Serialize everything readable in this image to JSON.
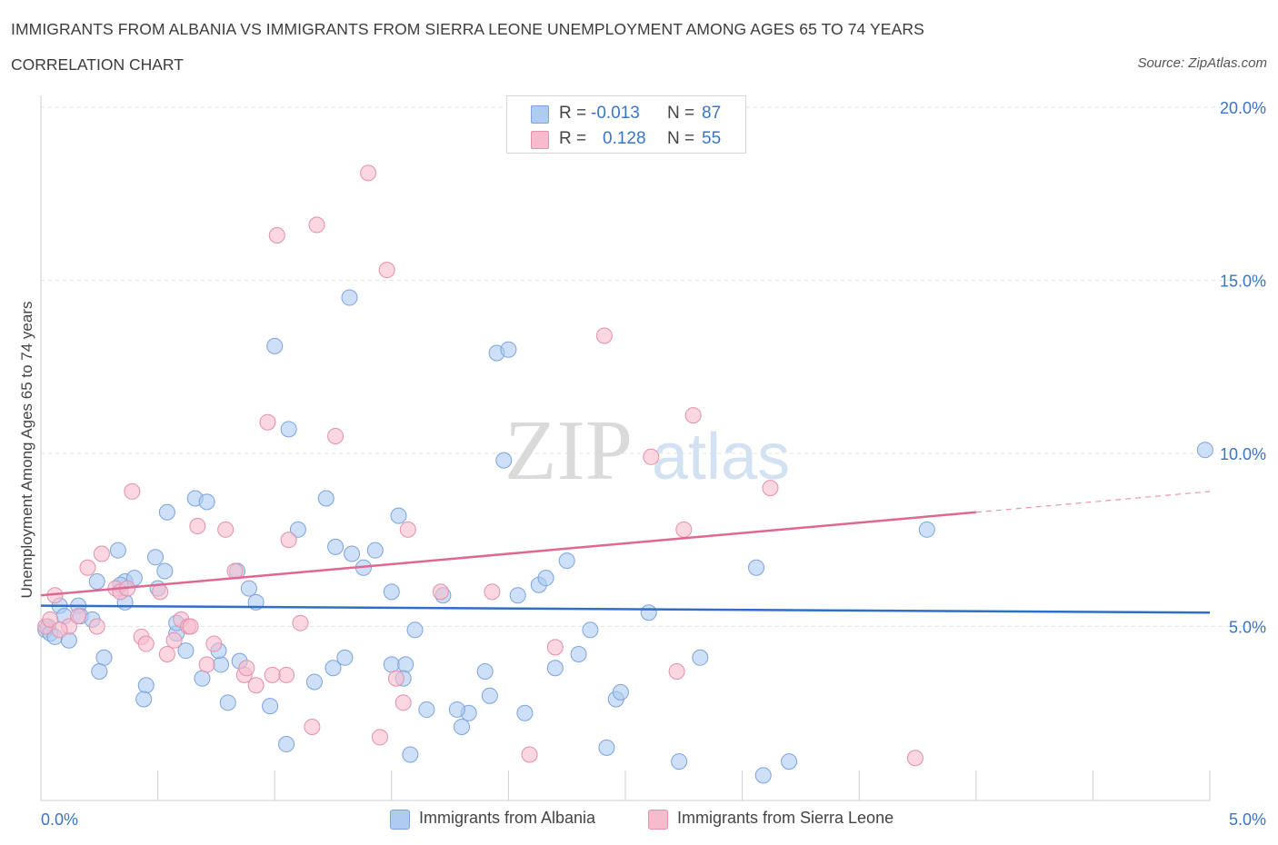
{
  "title": "IMMIGRANTS FROM ALBANIA VS IMMIGRANTS FROM SIERRA LEONE UNEMPLOYMENT AMONG AGES 65 TO 74 YEARS",
  "subtitle": "CORRELATION CHART",
  "source": "Source: ZipAtlas.com",
  "watermark": {
    "zip": "ZIP",
    "atlas": "atlas"
  },
  "stats": [
    {
      "r_label": "R =",
      "r_value": "-0.013",
      "n_label": "N =",
      "n_value": "87",
      "color": "#aecbf2"
    },
    {
      "r_label": "R =",
      "r_value": "0.128",
      "n_label": "N =",
      "n_value": "55",
      "color": "#f6bccd"
    }
  ],
  "legend": [
    {
      "label": "Immigrants from Albania",
      "color": "#aecbf2"
    },
    {
      "label": "Immigrants from Sierra Leone",
      "color": "#f6bccd"
    }
  ],
  "chart_data": {
    "type": "scatter",
    "title": "IMMIGRANTS FROM ALBANIA VS IMMIGRANTS FROM SIERRA LEONE UNEMPLOYMENT AMONG AGES 65 TO 74 YEARS",
    "subtitle": "CORRELATION CHART",
    "xlabel": "",
    "ylabel": "Unemployment Among Ages 65 to 74 years",
    "xlim": [
      0,
      5
    ],
    "ylim": [
      0,
      20
    ],
    "x_tick_labels": [
      "0.0%",
      "5.0%"
    ],
    "y_ticks": [
      5,
      10,
      15,
      20
    ],
    "y_tick_labels": [
      "5.0%",
      "10.0%",
      "15.0%",
      "20.0%"
    ],
    "grid": true,
    "legend_position": "bottom",
    "series": [
      {
        "name": "Immigrants from Albania",
        "color": "#aecbf2",
        "stroke": "#7ba3de",
        "line_color": "#2f6fc8",
        "trend": {
          "x": [
            0,
            5
          ],
          "y": [
            5.6,
            5.4
          ]
        },
        "points": [
          [
            0.02,
            4.9
          ],
          [
            0.03,
            5.0
          ],
          [
            0.04,
            4.8
          ],
          [
            0.06,
            4.7
          ],
          [
            0.08,
            5.6
          ],
          [
            0.1,
            5.3
          ],
          [
            0.12,
            4.6
          ],
          [
            0.16,
            5.6
          ],
          [
            0.17,
            5.3
          ],
          [
            0.22,
            5.2
          ],
          [
            0.24,
            6.3
          ],
          [
            0.27,
            4.1
          ],
          [
            0.25,
            3.7
          ],
          [
            0.36,
            6.3
          ],
          [
            0.4,
            6.4
          ],
          [
            0.36,
            5.7
          ],
          [
            0.45,
            3.3
          ],
          [
            0.44,
            2.9
          ],
          [
            0.49,
            7.0
          ],
          [
            0.53,
            6.6
          ],
          [
            0.54,
            8.3
          ],
          [
            0.58,
            4.8
          ],
          [
            0.62,
            4.3
          ],
          [
            0.66,
            8.7
          ],
          [
            0.71,
            8.6
          ],
          [
            0.77,
            3.9
          ],
          [
            0.85,
            4.0
          ],
          [
            0.89,
            6.1
          ],
          [
            0.84,
            6.6
          ],
          [
            0.92,
            5.7
          ],
          [
            0.98,
            2.7
          ],
          [
            1.05,
            1.6
          ],
          [
            1.1,
            7.8
          ],
          [
            1.17,
            3.4
          ],
          [
            1.22,
            8.7
          ],
          [
            1.26,
            7.3
          ],
          [
            1.3,
            4.1
          ],
          [
            1.33,
            7.1
          ],
          [
            1.38,
            6.7
          ],
          [
            1.43,
            7.2
          ],
          [
            1.5,
            6.0
          ],
          [
            1.53,
            8.2
          ],
          [
            1.58,
            1.3
          ],
          [
            1.6,
            4.9
          ],
          [
            1.65,
            2.6
          ],
          [
            1.72,
            5.9
          ],
          [
            1.8,
            2.1
          ],
          [
            1.83,
            2.5
          ],
          [
            1.92,
            3.0
          ],
          [
            1.95,
            12.9
          ],
          [
            1.98,
            9.8
          ],
          [
            2.0,
            13.0
          ],
          [
            2.04,
            5.9
          ],
          [
            2.07,
            2.5
          ],
          [
            2.13,
            6.2
          ],
          [
            2.16,
            6.4
          ],
          [
            2.2,
            3.8
          ],
          [
            2.25,
            6.9
          ],
          [
            2.3,
            4.2
          ],
          [
            2.35,
            4.9
          ],
          [
            2.46,
            2.9
          ],
          [
            2.42,
            1.5
          ],
          [
            2.6,
            5.4
          ],
          [
            2.73,
            1.1
          ],
          [
            2.82,
            4.1
          ],
          [
            3.06,
            6.7
          ],
          [
            3.09,
            0.7
          ],
          [
            3.2,
            1.1
          ],
          [
            3.79,
            7.8
          ],
          [
            4.98,
            10.1
          ],
          [
            1.0,
            13.1
          ],
          [
            1.06,
            10.7
          ],
          [
            0.8,
            2.8
          ],
          [
            0.69,
            3.5
          ],
          [
            0.76,
            4.3
          ],
          [
            0.58,
            5.1
          ],
          [
            0.5,
            6.1
          ],
          [
            0.33,
            7.2
          ],
          [
            0.34,
            6.2
          ],
          [
            1.5,
            3.9
          ],
          [
            1.56,
            3.9
          ],
          [
            1.32,
            14.5
          ],
          [
            1.25,
            3.8
          ],
          [
            1.55,
            3.5
          ],
          [
            1.78,
            2.6
          ],
          [
            1.9,
            3.7
          ],
          [
            2.48,
            3.1
          ]
        ]
      },
      {
        "name": "Immigrants from Sierra Leone",
        "color": "#f6bccd",
        "stroke": "#e58faa",
        "line_color": "#e0678f",
        "trend": {
          "x": [
            0,
            4.0
          ],
          "y": [
            5.9,
            8.3
          ]
        },
        "trend_ext": {
          "x": [
            4.0,
            5.0
          ],
          "y": [
            8.3,
            8.9
          ]
        },
        "points": [
          [
            0.02,
            5.0
          ],
          [
            0.04,
            5.2
          ],
          [
            0.06,
            5.9
          ],
          [
            0.12,
            5.0
          ],
          [
            0.16,
            5.3
          ],
          [
            0.2,
            6.7
          ],
          [
            0.24,
            5.0
          ],
          [
            0.26,
            7.1
          ],
          [
            0.32,
            6.1
          ],
          [
            0.34,
            6.0
          ],
          [
            0.39,
            8.9
          ],
          [
            0.43,
            4.7
          ],
          [
            0.45,
            4.5
          ],
          [
            0.51,
            6.0
          ],
          [
            0.54,
            4.2
          ],
          [
            0.57,
            4.6
          ],
          [
            0.6,
            5.2
          ],
          [
            0.63,
            5.0
          ],
          [
            0.67,
            7.9
          ],
          [
            0.71,
            3.9
          ],
          [
            0.74,
            4.5
          ],
          [
            0.79,
            7.8
          ],
          [
            0.83,
            6.6
          ],
          [
            0.87,
            3.6
          ],
          [
            0.92,
            3.3
          ],
          [
            0.97,
            10.9
          ],
          [
            1.01,
            16.3
          ],
          [
            1.05,
            3.6
          ],
          [
            1.06,
            7.5
          ],
          [
            1.11,
            5.1
          ],
          [
            1.16,
            2.1
          ],
          [
            1.18,
            16.6
          ],
          [
            1.26,
            10.5
          ],
          [
            1.4,
            18.1
          ],
          [
            1.45,
            1.8
          ],
          [
            1.48,
            15.3
          ],
          [
            1.52,
            3.5
          ],
          [
            1.57,
            7.8
          ],
          [
            1.71,
            6.0
          ],
          [
            1.93,
            6.0
          ],
          [
            2.09,
            1.3
          ],
          [
            2.2,
            4.4
          ],
          [
            2.41,
            13.4
          ],
          [
            2.61,
            9.9
          ],
          [
            2.72,
            3.7
          ],
          [
            2.75,
            7.8
          ],
          [
            2.79,
            11.1
          ],
          [
            3.12,
            9.0
          ],
          [
            3.74,
            1.2
          ],
          [
            0.37,
            6.1
          ],
          [
            0.64,
            5.0
          ],
          [
            0.88,
            3.8
          ],
          [
            0.99,
            3.6
          ],
          [
            1.55,
            2.8
          ],
          [
            0.08,
            4.9
          ]
        ]
      }
    ]
  }
}
